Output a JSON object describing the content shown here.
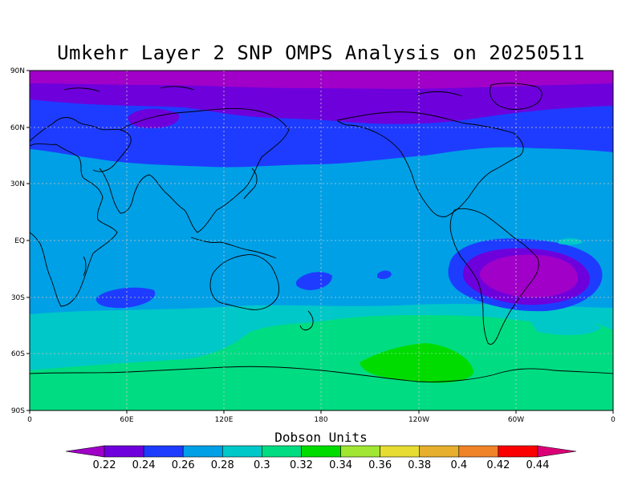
{
  "title": "Umkehr Layer 2 SNP OMPS Analysis on 20250511",
  "map": {
    "lat_labels": [
      "90N",
      "60N",
      "30N",
      "EQ",
      "30S",
      "60S",
      "90S"
    ],
    "lon_labels": [
      "0",
      "60E",
      "120E",
      "180",
      "120W",
      "60W",
      "0"
    ]
  },
  "colorbar": {
    "title": "Dobson Units",
    "levels": [
      "0.22",
      "0.24",
      "0.26",
      "0.28",
      "0.3",
      "0.32",
      "0.34",
      "0.36",
      "0.38",
      "0.4",
      "0.42",
      "0.44"
    ],
    "colors": [
      "#a000c8",
      "#6e00dc",
      "#1e3cff",
      "#00a0e6",
      "#00c8c8",
      "#00dc82",
      "#00dc00",
      "#a0e632",
      "#e6dc32",
      "#e6af2d",
      "#f08228",
      "#fa0000",
      "#dc0078"
    ]
  }
}
